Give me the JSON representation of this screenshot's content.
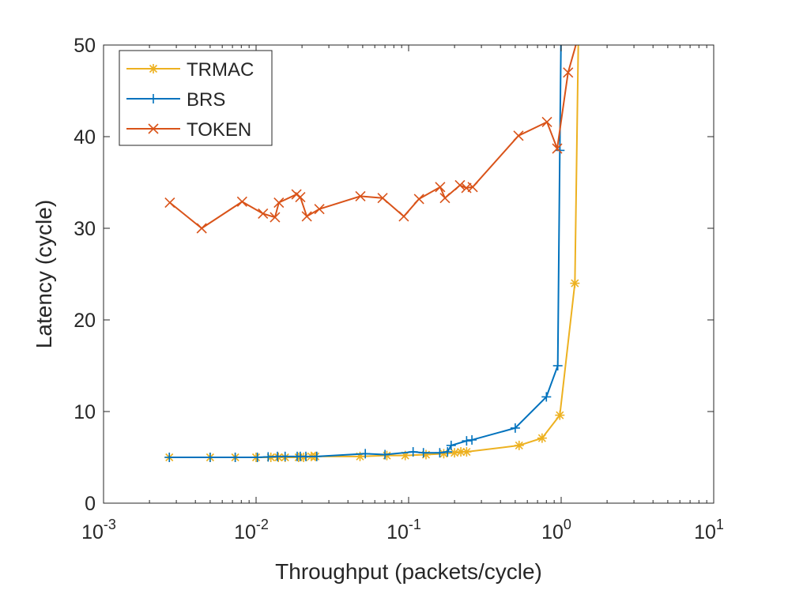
{
  "chart_data": {
    "type": "line",
    "title": "",
    "xlabel": "Throughput (packets/cycle)",
    "ylabel": "Latency (cycle)",
    "xscale": "log",
    "xlim": [
      0.001,
      10
    ],
    "ylim": [
      0,
      50
    ],
    "xticks": [
      {
        "value": 0.001,
        "base": "10",
        "exp": "-3"
      },
      {
        "value": 0.01,
        "base": "10",
        "exp": "-2"
      },
      {
        "value": 0.1,
        "base": "10",
        "exp": "-1"
      },
      {
        "value": 1,
        "base": "10",
        "exp": "0"
      },
      {
        "value": 10,
        "base": "10",
        "exp": "1"
      }
    ],
    "yticks": [
      {
        "value": 0,
        "label": "0"
      },
      {
        "value": 10,
        "label": "10"
      },
      {
        "value": 20,
        "label": "20"
      },
      {
        "value": 30,
        "label": "30"
      },
      {
        "value": 40,
        "label": "40"
      },
      {
        "value": 50,
        "label": "50"
      }
    ],
    "grid": false,
    "legend_position": "top-left",
    "series": [
      {
        "name": "TRMAC",
        "color": "#EDB120",
        "marker": "asterisk",
        "x": [
          0.0027,
          0.005,
          0.0073,
          0.01,
          0.0125,
          0.014,
          0.0155,
          0.019,
          0.0205,
          0.023,
          0.0245,
          0.048,
          0.072,
          0.095,
          0.13,
          0.17,
          0.2,
          0.22,
          0.24,
          0.53,
          0.75,
          0.98,
          1.23,
          1.3
        ],
        "y": [
          5,
          5,
          5,
          5,
          5,
          5,
          5,
          5,
          5,
          5.1,
          5.1,
          5.1,
          5.2,
          5.2,
          5.3,
          5.4,
          5.5,
          5.6,
          5.6,
          6.3,
          7.1,
          9.6,
          24,
          52
        ]
      },
      {
        "name": "BRS",
        "color": "#0072BD",
        "marker": "plus",
        "x": [
          0.0027,
          0.005,
          0.0073,
          0.0102,
          0.012,
          0.0138,
          0.0155,
          0.0186,
          0.0195,
          0.0212,
          0.025,
          0.052,
          0.07,
          0.107,
          0.125,
          0.16,
          0.18,
          0.19,
          0.24,
          0.26,
          0.5,
          0.8,
          0.95,
          0.98,
          1.0
        ],
        "y": [
          5,
          5,
          5,
          5,
          5.05,
          5.1,
          5.1,
          5.1,
          5.1,
          5.1,
          5.1,
          5.4,
          5.3,
          5.6,
          5.5,
          5.5,
          5.6,
          6.3,
          6.8,
          6.9,
          8.2,
          11.6,
          15,
          38.5,
          52
        ]
      },
      {
        "name": "TOKEN",
        "color": "#D95319",
        "marker": "cross",
        "x": [
          0.00272,
          0.0044,
          0.0081,
          0.0111,
          0.0133,
          0.0141,
          0.0184,
          0.0195,
          0.0215,
          0.026,
          0.0483,
          0.0675,
          0.093,
          0.117,
          0.161,
          0.173,
          0.217,
          0.239,
          0.263,
          0.525,
          0.807,
          0.942,
          1.11,
          1.35
        ],
        "y": [
          32.8,
          30.0,
          32.9,
          31.6,
          31.2,
          32.8,
          33.7,
          33.4,
          31.3,
          32.1,
          33.5,
          33.3,
          31.3,
          33.2,
          34.5,
          33.3,
          34.7,
          34.4,
          34.5,
          40.1,
          41.6,
          38.7,
          47.0,
          52
        ]
      }
    ]
  }
}
